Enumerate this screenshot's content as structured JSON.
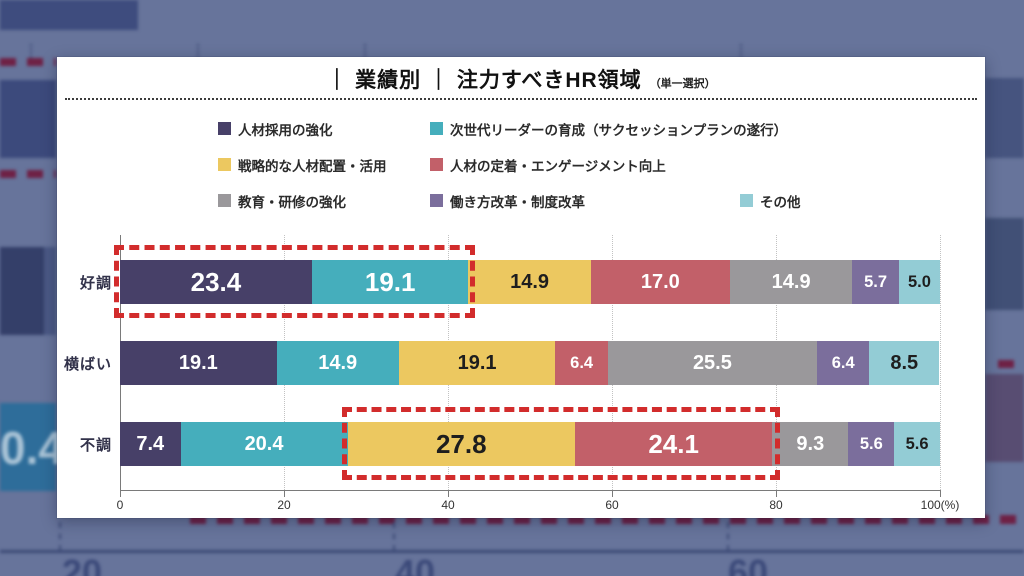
{
  "card": {
    "title": "｜ 業績別 ｜ 注力すべきHR領域",
    "title_note": "（単一選択）"
  },
  "chart_data": {
    "type": "bar",
    "orientation": "horizontal-stacked",
    "title": "業績別 注力すべきHR領域（単一選択）",
    "unit": "%",
    "xlim": [
      0,
      100
    ],
    "grid": true,
    "legend_position": "top",
    "x_ticks": [
      "0",
      "20",
      "40",
      "60",
      "80",
      "100(%)"
    ],
    "categories": [
      "好調",
      "横ばい",
      "不調"
    ],
    "series": [
      {
        "name": "人材採用の強化",
        "color": "#474068",
        "text_color": "#ffffff"
      },
      {
        "name": "次世代リーダーの育成（サクセッションプランの遂行）",
        "color": "#45aebc",
        "text_color": "#ffffff"
      },
      {
        "name": "戦略的な人材配置・活用",
        "color": "#ecc860",
        "text_color": "#1e1e1e"
      },
      {
        "name": "人材の定着・エンゲージメント向上",
        "color": "#c26069",
        "text_color": "#ffffff"
      },
      {
        "name": "教育・研修の強化",
        "color": "#9a989b",
        "text_color": "#ffffff"
      },
      {
        "name": "働き方改革・制度改革",
        "color": "#7b6e9c",
        "text_color": "#ffffff"
      },
      {
        "name": "その他",
        "color": "#93ccd5",
        "text_color": "#1e1e1e"
      }
    ],
    "rows": [
      {
        "category": "好調",
        "values": [
          23.4,
          19.1,
          14.9,
          17.0,
          14.9,
          5.7,
          5.0
        ]
      },
      {
        "category": "横ばい",
        "values": [
          19.1,
          14.9,
          19.1,
          6.4,
          25.5,
          6.4,
          8.5
        ]
      },
      {
        "category": "不調",
        "values": [
          7.4,
          20.4,
          27.8,
          24.1,
          9.3,
          5.6,
          5.6
        ]
      }
    ],
    "highlights": [
      {
        "row": 0,
        "from_segment": 0,
        "to_segment": 1,
        "color": "#d22c2c"
      },
      {
        "row": 2,
        "from_segment": 2,
        "to_segment": 3,
        "color": "#d22c2c"
      }
    ]
  },
  "background": {
    "partial_bar_value": "0.4",
    "axis_numbers": [
      "20",
      "40",
      "60"
    ]
  },
  "colors": {
    "page_background": "#67749b",
    "card_background": "#ffffff",
    "highlight_red": "#d22c2c",
    "background_dash_maroon": "#6e2145",
    "background_navy_band": "#3e4c7e",
    "background_teal_band": "#2e6d9a"
  }
}
